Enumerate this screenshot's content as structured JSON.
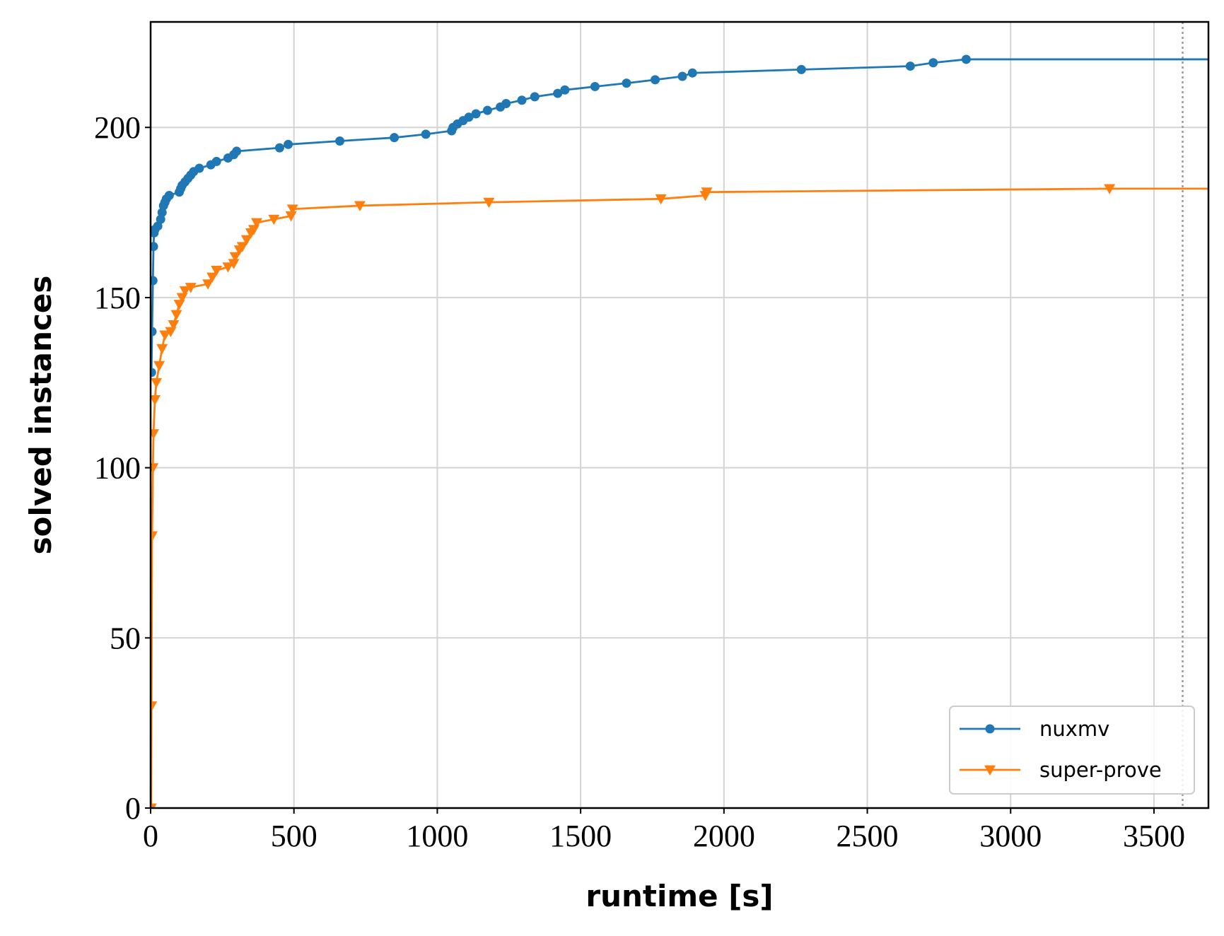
{
  "chart_data": {
    "type": "line",
    "xlabel": "runtime [s]",
    "ylabel": "solved instances",
    "xlim": [
      0,
      3690
    ],
    "ylim": [
      0,
      231
    ],
    "xticks": [
      0,
      500,
      1000,
      1500,
      2000,
      2500,
      3000,
      3500
    ],
    "yticks": [
      0,
      50,
      100,
      150,
      200
    ],
    "grid": true,
    "legend": "lower right",
    "vline": 3600,
    "series": [
      {
        "name": "nuxmv",
        "color": "#1f77b4",
        "marker": "circle",
        "x": [
          3,
          5,
          8,
          10,
          12,
          15,
          25,
          35,
          40,
          45,
          50,
          55,
          65,
          100,
          105,
          110,
          120,
          130,
          140,
          150,
          170,
          210,
          230,
          270,
          290,
          300,
          450,
          480,
          660,
          850,
          960,
          1050,
          1055,
          1070,
          1090,
          1110,
          1135,
          1175,
          1220,
          1240,
          1295,
          1340,
          1420,
          1445,
          1550,
          1660,
          1760,
          1855,
          1890,
          2270,
          2650,
          2730,
          2845
        ],
        "values": [
          128,
          140,
          155,
          165,
          169,
          170,
          171,
          173,
          175,
          177,
          178,
          179,
          180,
          181,
          182,
          183,
          184,
          185,
          186,
          187,
          188,
          189,
          190,
          191,
          192,
          193,
          194,
          195,
          196,
          197,
          198,
          199,
          200,
          201,
          202,
          203,
          204,
          205,
          206,
          207,
          208,
          209,
          210,
          211,
          212,
          213,
          214,
          215,
          216,
          217,
          218,
          219,
          220
        ]
      },
      {
        "name": "super-prove",
        "color": "#ff7f0e",
        "marker": "triangle-down",
        "x": [
          2,
          3,
          5,
          8,
          10,
          15,
          20,
          30,
          40,
          50,
          70,
          80,
          90,
          100,
          110,
          120,
          140,
          200,
          215,
          230,
          270,
          290,
          295,
          310,
          320,
          335,
          350,
          360,
          370,
          430,
          490,
          495,
          730,
          1180,
          1780,
          1935,
          1940,
          3345
        ],
        "values": [
          0,
          30,
          80,
          100,
          110,
          120,
          125,
          130,
          135,
          139,
          140,
          142,
          145,
          148,
          150,
          152,
          153,
          154,
          156,
          158,
          159,
          160,
          162,
          164,
          165,
          167,
          169,
          170,
          172,
          173,
          174,
          176,
          177,
          178,
          179,
          180,
          181,
          182
        ]
      }
    ]
  }
}
